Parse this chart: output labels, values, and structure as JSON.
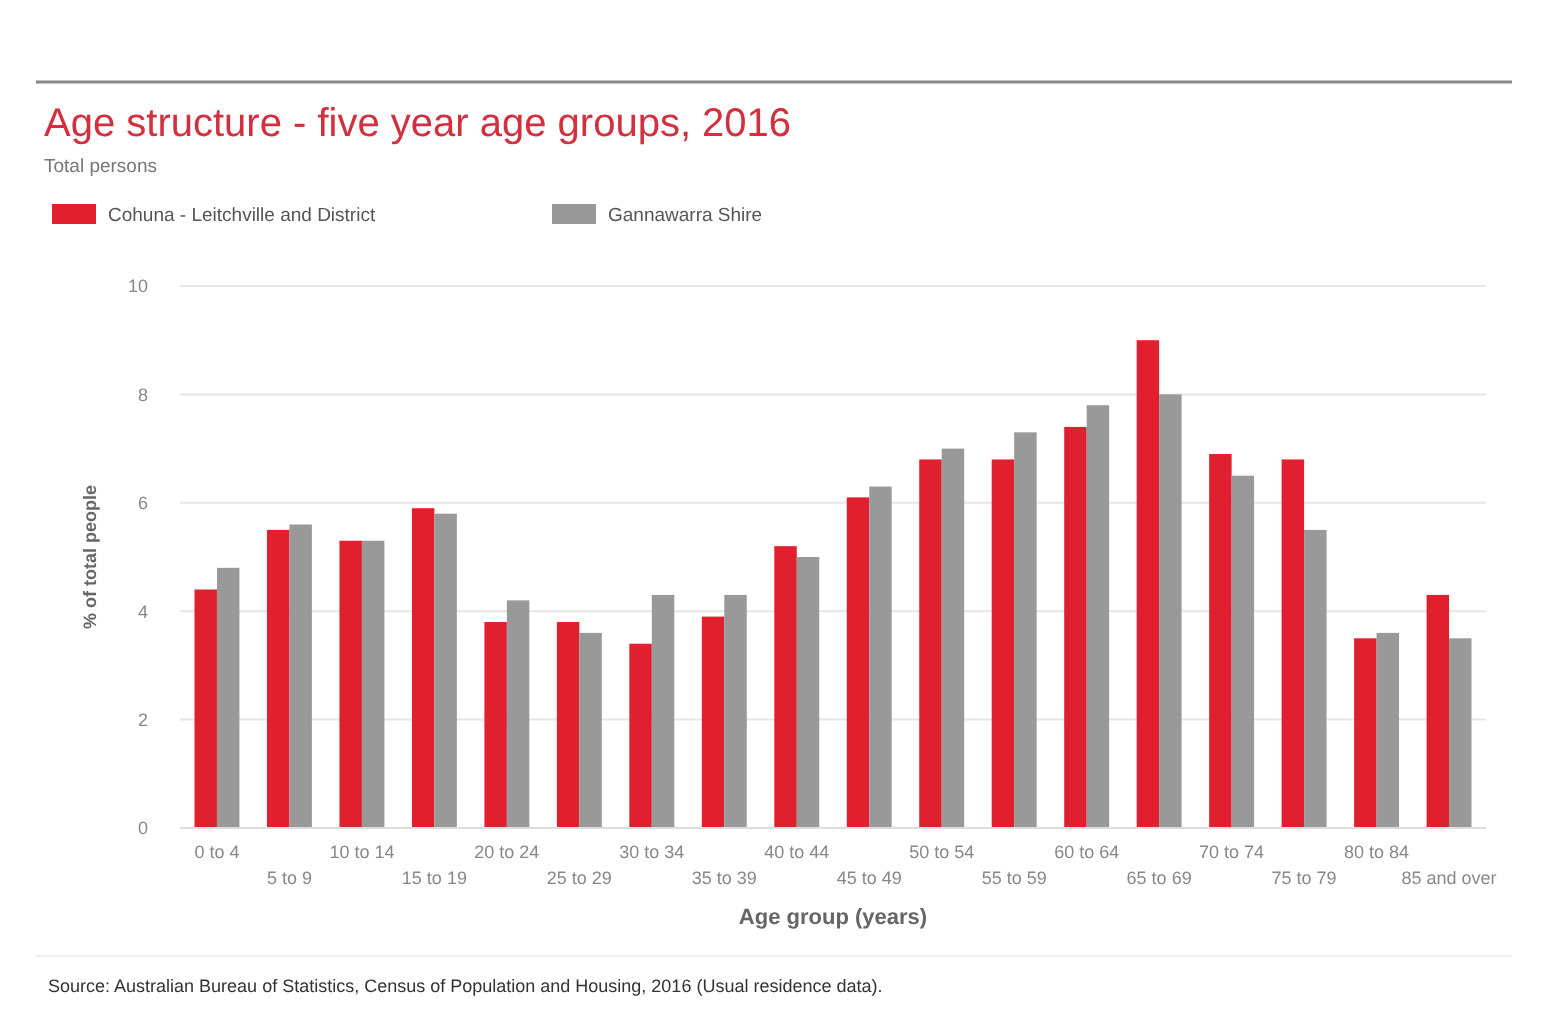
{
  "chart_data": {
    "type": "bar",
    "title": "Age structure - five year age groups, 2016",
    "subtitle": "Total persons",
    "xlabel": "Age group (years)",
    "ylabel": "% of total people",
    "categories": [
      "0 to 4",
      "5 to 9",
      "10 to 14",
      "15 to 19",
      "20 to 24",
      "25 to 29",
      "30 to 34",
      "35 to 39",
      "40 to 44",
      "45 to 49",
      "50 to 54",
      "55 to 59",
      "60 to 64",
      "65 to 69",
      "70 to 74",
      "75 to 79",
      "80 to 84",
      "85 and over"
    ],
    "series": [
      {
        "name": "Cohuna - Leitchville and District",
        "color": "#e0202e",
        "values": [
          4.4,
          5.5,
          5.3,
          5.9,
          3.8,
          3.8,
          3.4,
          3.9,
          5.2,
          6.1,
          6.8,
          6.8,
          7.4,
          9.0,
          6.9,
          6.8,
          3.5,
          4.3
        ]
      },
      {
        "name": "Gannawarra Shire",
        "color": "#999999",
        "values": [
          4.8,
          5.6,
          5.3,
          5.8,
          4.2,
          3.6,
          4.3,
          4.3,
          5.0,
          6.3,
          7.0,
          7.3,
          7.8,
          8.0,
          6.5,
          5.5,
          3.6,
          3.5
        ]
      }
    ],
    "ylim": [
      0,
      10
    ],
    "yticks": [
      0,
      2,
      4,
      6,
      8,
      10
    ],
    "grid": "y",
    "legend": "top left",
    "annotations": [
      "Source: Australian Bureau of Statistics, Census of Population and Housing, 2016 (Usual residence data)."
    ]
  }
}
